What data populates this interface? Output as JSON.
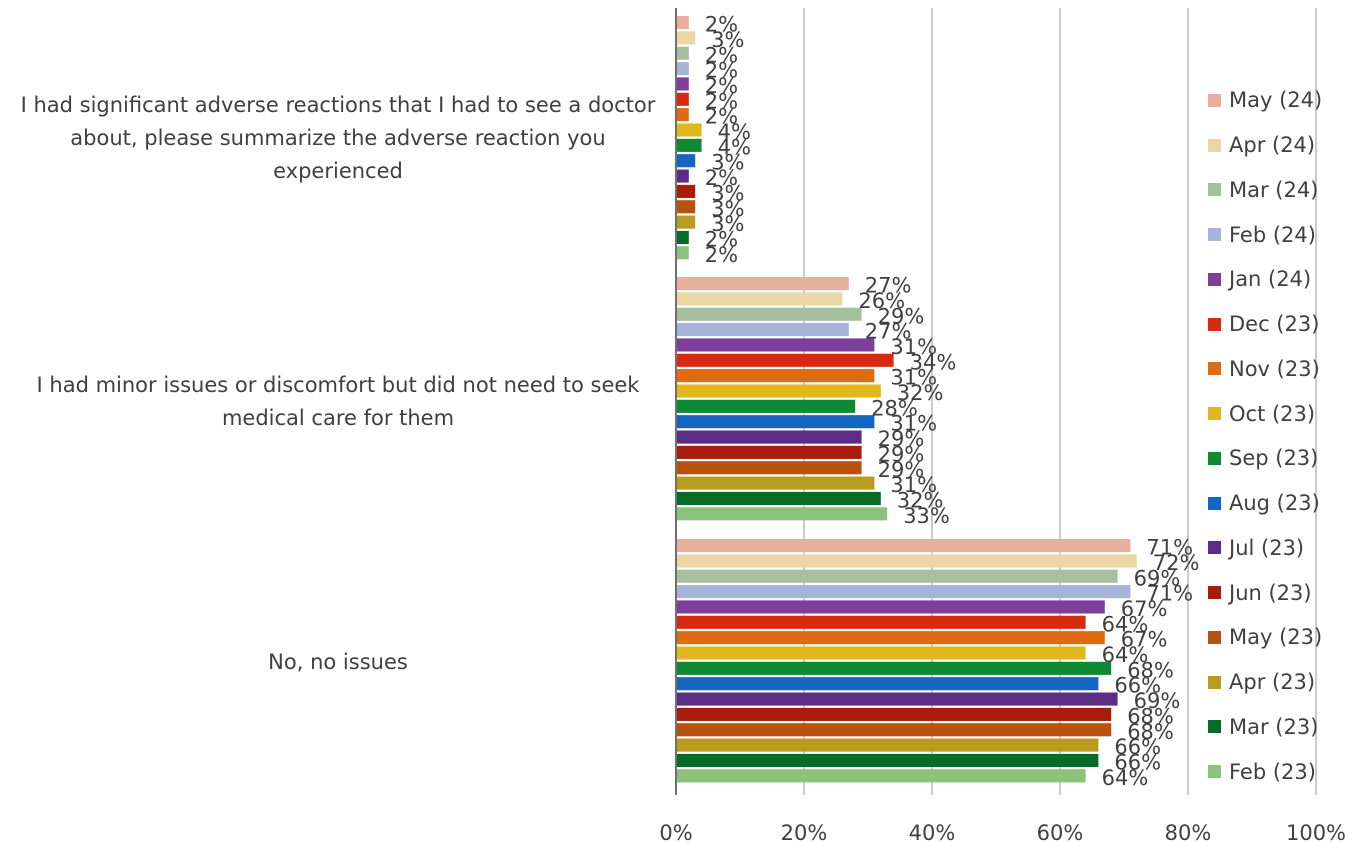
{
  "chart_data": {
    "type": "bar",
    "orientation": "horizontal",
    "categories": [
      "I had significant adverse reactions that I had to see a doctor about, please summarize the adverse reaction you experienced",
      "I had minor issues or discomfort but did not need to seek medical care for them",
      "No, no issues"
    ],
    "series": [
      {
        "name": "May (24)",
        "color": "#E8AE9E",
        "values": [
          2,
          27,
          71
        ]
      },
      {
        "name": "Apr (24)",
        "color": "#EBD6A5",
        "values": [
          3,
          26,
          72
        ]
      },
      {
        "name": "Mar (24)",
        "color": "#A6BF9F",
        "values": [
          2,
          29,
          69
        ]
      },
      {
        "name": "Feb (24)",
        "color": "#A7B3D9",
        "values": [
          2,
          27,
          71
        ]
      },
      {
        "name": "Jan (24)",
        "color": "#7E3F9C",
        "values": [
          2,
          31,
          67
        ]
      },
      {
        "name": "Dec (23)",
        "color": "#D72A0E",
        "values": [
          2,
          34,
          64
        ]
      },
      {
        "name": "Nov (23)",
        "color": "#E06C12",
        "values": [
          2,
          31,
          67
        ]
      },
      {
        "name": "Oct (23)",
        "color": "#E3B71E",
        "values": [
          4,
          32,
          64
        ]
      },
      {
        "name": "Sep (23)",
        "color": "#0E8A34",
        "values": [
          4,
          28,
          68
        ]
      },
      {
        "name": "Aug (23)",
        "color": "#1466C2",
        "values": [
          3,
          31,
          66
        ]
      },
      {
        "name": "Jul (23)",
        "color": "#5C2D84",
        "values": [
          2,
          29,
          69
        ]
      },
      {
        "name": "Jun (23)",
        "color": "#A71C0A",
        "values": [
          3,
          29,
          68
        ]
      },
      {
        "name": "May (23)",
        "color": "#B8520E",
        "values": [
          3,
          29,
          68
        ]
      },
      {
        "name": "Apr (23)",
        "color": "#B99B20",
        "values": [
          3,
          31,
          66
        ]
      },
      {
        "name": "Mar (23)",
        "color": "#066A28",
        "values": [
          2,
          32,
          66
        ]
      },
      {
        "name": "Feb (23)",
        "color": "#8CC27A",
        "values": [
          2,
          33,
          64
        ]
      }
    ],
    "xlim": [
      0,
      100
    ],
    "x_ticks": [
      "0%",
      "20%",
      "40%",
      "60%",
      "80%",
      "100%"
    ],
    "value_suffix": "%",
    "grid": true,
    "legend": "right",
    "title": "",
    "xlabel": "",
    "ylabel": ""
  }
}
